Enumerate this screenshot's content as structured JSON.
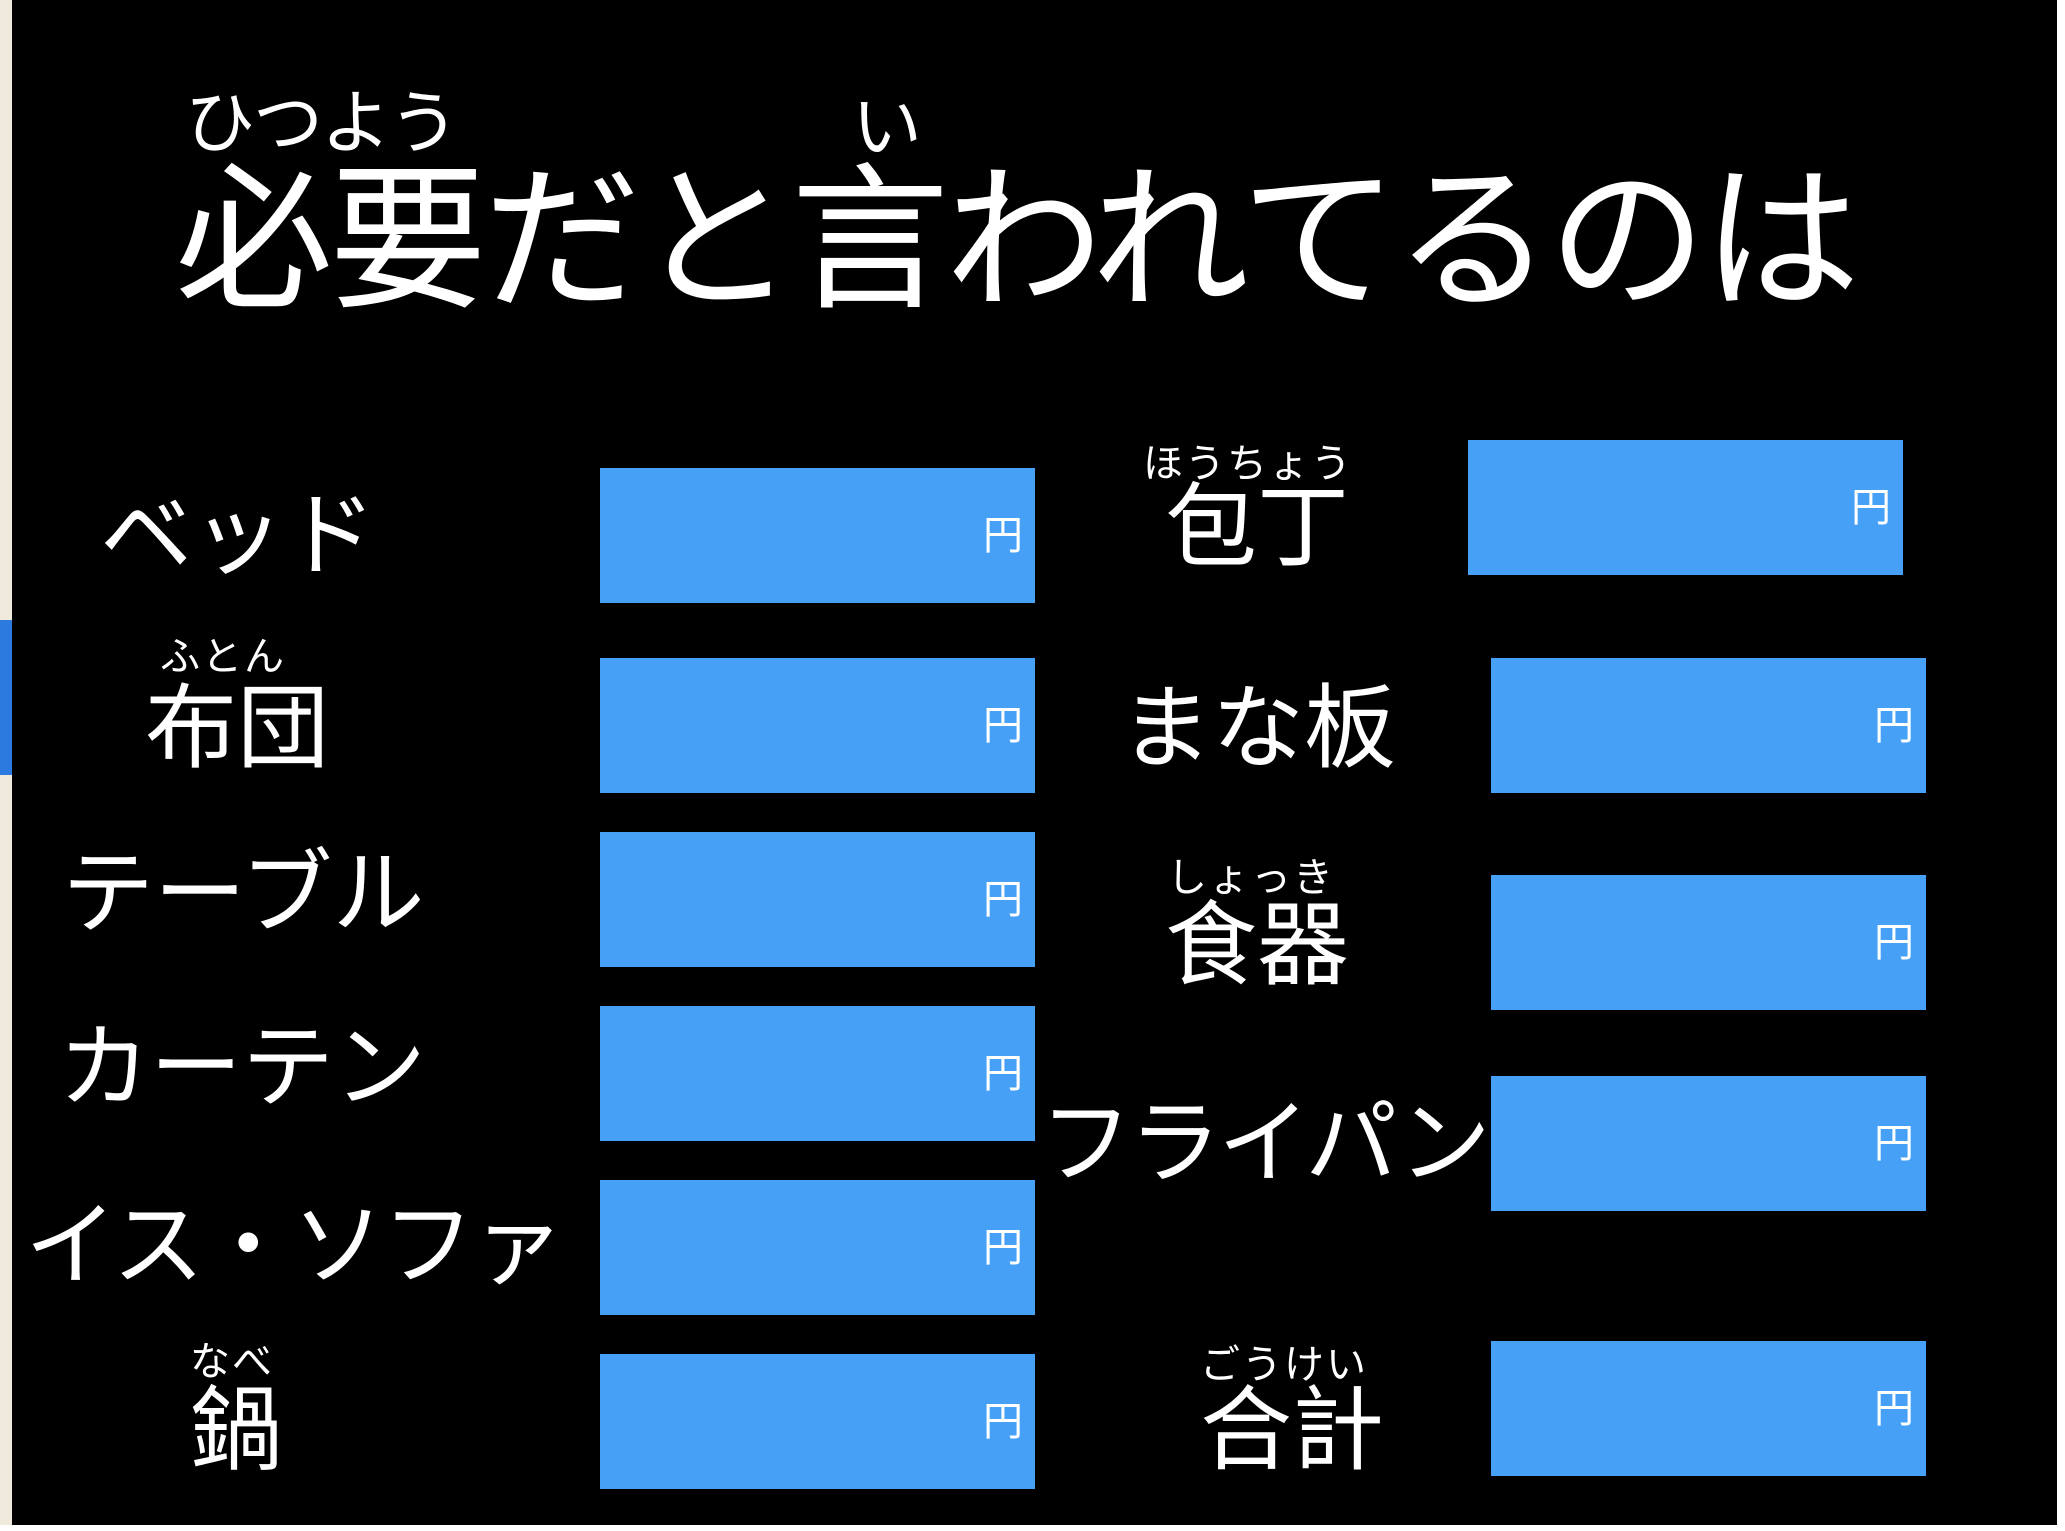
{
  "title": {
    "text": "必要だと言われてるのは",
    "ruby_1": "ひつよう",
    "ruby_2": "い"
  },
  "unit": "円",
  "left_items": [
    {
      "label": "ベッド",
      "ruby": ""
    },
    {
      "label": "布団",
      "ruby": "ふとん"
    },
    {
      "label": "テーブル",
      "ruby": ""
    },
    {
      "label": "カーテン",
      "ruby": ""
    },
    {
      "label": "イス・ソファ",
      "ruby": ""
    },
    {
      "label": "鍋",
      "ruby": "なべ"
    }
  ],
  "right_items": [
    {
      "label": "包丁",
      "ruby": "ほうちょう"
    },
    {
      "label": "まな板",
      "ruby": ""
    },
    {
      "label": "食器",
      "ruby": "しょっき"
    },
    {
      "label": "フライパン",
      "ruby": ""
    },
    {
      "label": "合計",
      "ruby": "ごうけい"
    }
  ],
  "colors": {
    "background": "#000000",
    "input_box": "#46a1f6",
    "text": "#ffffff"
  }
}
